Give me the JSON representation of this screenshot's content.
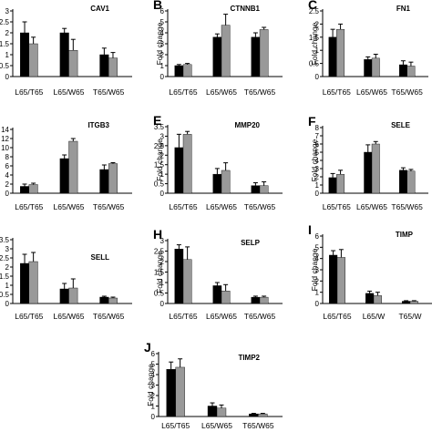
{
  "colors": {
    "series_1": "#000000",
    "series_2": "#999999",
    "axis": "#000000"
  },
  "chart_data": [
    {
      "type": "bar",
      "panel_letter": "",
      "gene_title": "CAV1",
      "ylabel": "",
      "categories": [
        "L65/T65",
        "L65/W65",
        "T65/W65"
      ],
      "series": [
        {
          "values": [
            2.0,
            2.0,
            1.0
          ],
          "errors": [
            0.5,
            0.2,
            0.3
          ]
        },
        {
          "values": [
            1.5,
            1.2,
            0.85
          ],
          "errors": [
            0.3,
            0.5,
            0.25
          ]
        }
      ],
      "ylim": [
        0,
        3
      ],
      "yticks": [
        "0",
        "0.5",
        "1",
        "1.5",
        "2",
        "2.5",
        "3"
      ]
    },
    {
      "type": "bar",
      "panel_letter": "B",
      "gene_title": "CTNNB1",
      "ylabel": "Fold change",
      "categories": [
        "L65/T65",
        "L65/W65",
        "T65/W65"
      ],
      "series": [
        {
          "values": [
            1.0,
            3.6,
            3.6
          ],
          "errors": [
            0.1,
            0.3,
            0.4
          ]
        },
        {
          "values": [
            1.1,
            4.7,
            4.3
          ],
          "errors": [
            0.1,
            1.0,
            0.2
          ]
        }
      ],
      "ylim": [
        0,
        6
      ],
      "yticks": [
        "0",
        "1",
        "2",
        "3",
        "4",
        "5",
        "6"
      ]
    },
    {
      "type": "bar",
      "panel_letter": "C",
      "gene_title": "FN1",
      "ylabel": "Fold change",
      "categories": [
        "L65/T65",
        "L65/W65",
        "T65/W65"
      ],
      "series": [
        {
          "values": [
            1.5,
            0.65,
            0.45
          ],
          "errors": [
            0.3,
            0.1,
            0.15
          ]
        },
        {
          "values": [
            1.8,
            0.7,
            0.4
          ],
          "errors": [
            0.2,
            0.15,
            0.15
          ]
        }
      ],
      "ylim": [
        0,
        2.5
      ],
      "yticks": [
        "0",
        "0.5",
        "1",
        "1.5",
        "2",
        "2.5"
      ]
    },
    {
      "type": "bar",
      "panel_letter": "",
      "gene_title": "ITGB3",
      "ylabel": "",
      "categories": [
        "L65/T65",
        "L65/W65",
        "T65/W65"
      ],
      "series": [
        {
          "values": [
            1.5,
            7.6,
            5.2
          ],
          "errors": [
            0.5,
            0.8,
            1.0
          ]
        },
        {
          "values": [
            1.9,
            11.4,
            6.5
          ],
          "errors": [
            0.3,
            0.6,
            0.2
          ]
        }
      ],
      "ylim": [
        0,
        14
      ],
      "yticks": [
        "0",
        "2",
        "4",
        "6",
        "8",
        "10",
        "12",
        "14"
      ]
    },
    {
      "type": "bar",
      "panel_letter": "E",
      "gene_title": "MMP20",
      "ylabel": "Fold change",
      "categories": [
        "L65/T65",
        "L65/W65",
        "T65/W65"
      ],
      "series": [
        {
          "values": [
            2.4,
            1.0,
            0.4
          ],
          "errors": [
            0.7,
            0.3,
            0.15
          ]
        },
        {
          "values": [
            3.1,
            1.2,
            0.4
          ],
          "errors": [
            0.15,
            0.4,
            0.2
          ]
        }
      ],
      "ylim": [
        0,
        3.5
      ],
      "yticks": [
        "0",
        "0.5",
        "1",
        "1.5",
        "2",
        "2.5",
        "3",
        "3.5"
      ]
    },
    {
      "type": "bar",
      "panel_letter": "F",
      "gene_title": "SELE",
      "ylabel": "Fold change",
      "categories": [
        "L65/T65",
        "L65/W65",
        "T65/W65"
      ],
      "series": [
        {
          "values": [
            1.9,
            5.0,
            2.8
          ],
          "errors": [
            0.5,
            0.9,
            0.3
          ]
        },
        {
          "values": [
            2.3,
            6.0,
            2.7
          ],
          "errors": [
            0.5,
            0.3,
            0.2
          ]
        }
      ],
      "ylim": [
        0,
        8
      ],
      "yticks": [
        "0",
        "1",
        "2",
        "3",
        "4",
        "5",
        "6",
        "7",
        "8"
      ]
    },
    {
      "type": "bar",
      "panel_letter": "",
      "gene_title": "SELL",
      "ylabel": "",
      "categories": [
        "L65/T65",
        "L65/W65",
        "T65/W65"
      ],
      "series": [
        {
          "values": [
            2.2,
            0.8,
            0.35
          ],
          "errors": [
            0.5,
            0.3,
            0.05
          ]
        },
        {
          "values": [
            2.3,
            0.85,
            0.3
          ],
          "errors": [
            0.5,
            0.5,
            0.05
          ]
        }
      ],
      "ylim": [
        0,
        3.5
      ],
      "yticks": [
        "0",
        "0.5",
        "1",
        "1.5",
        "2",
        "2.5",
        "3",
        "3.5"
      ]
    },
    {
      "type": "bar",
      "panel_letter": "H",
      "gene_title": "SELP",
      "ylabel": "Fold change",
      "categories": [
        "L65/T65",
        "L65/W65",
        "T65/W65"
      ],
      "series": [
        {
          "values": [
            2.6,
            0.85,
            0.3
          ],
          "errors": [
            0.2,
            0.15,
            0.05
          ]
        },
        {
          "values": [
            2.1,
            0.6,
            0.3
          ],
          "errors": [
            0.6,
            0.3,
            0.05
          ]
        }
      ],
      "ylim": [
        0,
        3
      ],
      "yticks": [
        "0",
        "0.5",
        "1",
        "1.5",
        "2",
        "2.5",
        "3"
      ]
    },
    {
      "type": "bar",
      "panel_letter": "I",
      "gene_title": "TIMP",
      "ylabel": "Fold change",
      "categories": [
        "L65/T65",
        "L65/W",
        "T65/W"
      ],
      "series": [
        {
          "values": [
            4.3,
            0.9,
            0.2
          ],
          "errors": [
            0.4,
            0.2,
            0.05
          ]
        },
        {
          "values": [
            4.1,
            0.7,
            0.2
          ],
          "errors": [
            0.7,
            0.3,
            0.05
          ]
        }
      ],
      "ylim": [
        0,
        6
      ],
      "yticks": [
        "0",
        "1",
        "2",
        "3",
        "4",
        "5",
        "6"
      ]
    },
    {
      "type": "bar",
      "panel_letter": "J",
      "gene_title": "TIMP2",
      "ylabel": "Fold change",
      "categories": [
        "L65/T65",
        "L65/W65",
        "T65/W65"
      ],
      "series": [
        {
          "values": [
            4.5,
            1.0,
            0.25
          ],
          "errors": [
            0.7,
            0.3,
            0.05
          ]
        },
        {
          "values": [
            4.7,
            0.8,
            0.25
          ],
          "errors": [
            0.8,
            0.3,
            0.05
          ]
        }
      ],
      "ylim": [
        0,
        6
      ],
      "yticks": [
        "0",
        "1",
        "2",
        "3",
        "4",
        "5",
        "6"
      ]
    }
  ]
}
